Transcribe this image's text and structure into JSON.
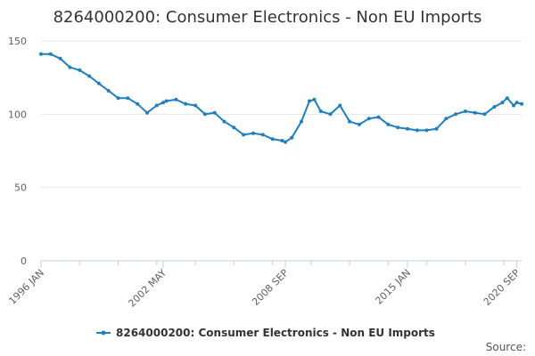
{
  "chart_data": {
    "type": "line",
    "title": "8264000200: Consumer Electronics - Non EU Imports",
    "xlabel": "",
    "ylabel": "",
    "ylim": [
      0,
      150
    ],
    "yticks": [
      0,
      50,
      100,
      150
    ],
    "x_range": [
      "1996 JAN",
      "2020 DEC"
    ],
    "x_tick_labels": [
      "1996 JAN",
      "2002 MAY",
      "2008 SEP",
      "2015 JAN",
      "2020 SEP"
    ],
    "grid": true,
    "legend_position": "bottom-center",
    "series": [
      {
        "name": "8264000200: Consumer Electronics - Non EU Imports",
        "color": "#1f7fbf",
        "marker": "circle",
        "points": [
          [
            "1996 JAN",
            141
          ],
          [
            "1996 JUL",
            141
          ],
          [
            "1997 JAN",
            138
          ],
          [
            "1997 JUL",
            132
          ],
          [
            "1998 JAN",
            130
          ],
          [
            "1998 JUL",
            126
          ],
          [
            "1999 JAN",
            121
          ],
          [
            "1999 JUL",
            116
          ],
          [
            "2000 JAN",
            111
          ],
          [
            "2000 JUL",
            111
          ],
          [
            "2001 JAN",
            107
          ],
          [
            "2001 JUL",
            101
          ],
          [
            "2002 JAN",
            106
          ],
          [
            "2002 MAY",
            108
          ],
          [
            "2002 JUL",
            109
          ],
          [
            "2003 JAN",
            110
          ],
          [
            "2003 JUL",
            107
          ],
          [
            "2004 JAN",
            106
          ],
          [
            "2004 JUL",
            100
          ],
          [
            "2005 JAN",
            101
          ],
          [
            "2005 JUL",
            95
          ],
          [
            "2006 JAN",
            91
          ],
          [
            "2006 JUL",
            86
          ],
          [
            "2007 JAN",
            87
          ],
          [
            "2007 JUL",
            86
          ],
          [
            "2008 JAN",
            83
          ],
          [
            "2008 JUL",
            82
          ],
          [
            "2008 SEP",
            81
          ],
          [
            "2009 JAN",
            84
          ],
          [
            "2009 JUL",
            95
          ],
          [
            "2009 DEC",
            109
          ],
          [
            "2010 MAR",
            110
          ],
          [
            "2010 JUL",
            102
          ],
          [
            "2011 JAN",
            100
          ],
          [
            "2011 JUL",
            106
          ],
          [
            "2012 JAN",
            95
          ],
          [
            "2012 JUL",
            93
          ],
          [
            "2013 JAN",
            97
          ],
          [
            "2013 JUL",
            98
          ],
          [
            "2014 JAN",
            93
          ],
          [
            "2014 JUL",
            91
          ],
          [
            "2015 JAN",
            90
          ],
          [
            "2015 JUL",
            89
          ],
          [
            "2016 JAN",
            89
          ],
          [
            "2016 JUL",
            90
          ],
          [
            "2017 JAN",
            97
          ],
          [
            "2017 JUL",
            100
          ],
          [
            "2018 JAN",
            102
          ],
          [
            "2018 JUL",
            101
          ],
          [
            "2019 JAN",
            100
          ],
          [
            "2019 JUL",
            105
          ],
          [
            "2019 DEC",
            108
          ],
          [
            "2020 MAR",
            111
          ],
          [
            "2020 JUL",
            106
          ],
          [
            "2020 SEP",
            108
          ],
          [
            "2020 DEC",
            107
          ]
        ]
      }
    ]
  },
  "legend": {
    "label": "8264000200: Consumer Electronics - Non EU Imports"
  },
  "source_label": "Source:"
}
